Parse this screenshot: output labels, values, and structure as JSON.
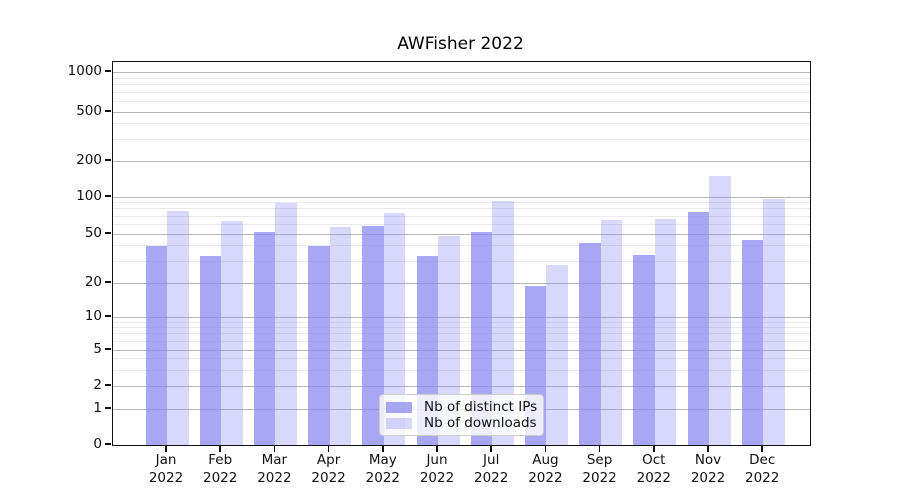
{
  "figure_title": "AWFisher 2022",
  "chart_data": {
    "type": "bar",
    "title": "AWFisher 2022",
    "xlabel": "",
    "ylabel": "",
    "categories": [
      "Jan 2022",
      "Feb 2022",
      "Mar 2022",
      "Apr 2022",
      "May 2022",
      "Jun 2022",
      "Jul 2022",
      "Aug 2022",
      "Sep 2022",
      "Oct 2022",
      "Nov 2022",
      "Dec 2022"
    ],
    "series": [
      {
        "name": "Nb of distinct IPs",
        "color": "rgba(138,138,240,0.75)",
        "values": [
          40,
          33,
          52,
          40,
          58,
          33,
          52,
          19,
          42,
          34,
          75,
          45
        ]
      },
      {
        "name": "Nb of downloads",
        "color": "rgba(138,138,240,0.33)",
        "values": [
          77,
          64,
          90,
          57,
          74,
          48,
          93,
          28,
          65,
          66,
          150,
          96
        ]
      }
    ],
    "yscale": "asinh (log-like above 1, linear 0-1)",
    "ylim": [
      0,
      1170
    ],
    "y_ticks": [
      0,
      1,
      2,
      5,
      10,
      20,
      50,
      100,
      200,
      500,
      1000
    ],
    "y_minor_ticks": [
      3,
      4,
      6,
      7,
      8,
      9,
      30,
      40,
      60,
      70,
      80,
      90,
      300,
      400,
      600,
      700,
      800,
      900
    ],
    "grid": "horizontal major + minor, vertical off",
    "legend": {
      "position": "lower center inside plot",
      "entries": [
        "Nb of distinct IPs",
        "Nb of downloads"
      ]
    },
    "colors": {
      "bar_distinct_ips": "rgba(138,138,240,0.75)",
      "bar_downloads": "rgba(138,138,240,0.33)",
      "grid_major": "#b6b6b6",
      "grid_minor": "#e9e9ec",
      "axis": "#111111",
      "background": "#ffffff"
    }
  }
}
